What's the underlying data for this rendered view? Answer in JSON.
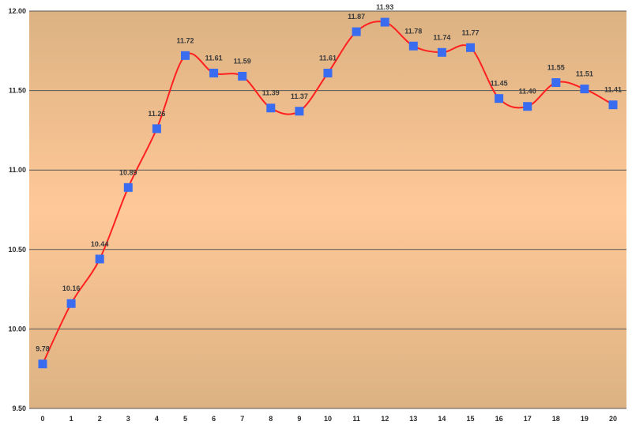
{
  "chart_data": {
    "type": "line",
    "title": "",
    "xlabel": "",
    "ylabel": "",
    "x": [
      0,
      1,
      2,
      3,
      4,
      5,
      6,
      7,
      8,
      9,
      10,
      11,
      12,
      13,
      14,
      15,
      16,
      17,
      18,
      19,
      20
    ],
    "x_tick_labels": [
      "0",
      "1",
      "2",
      "3",
      "4",
      "5",
      "6",
      "7",
      "8",
      "9",
      "10",
      "11",
      "12",
      "13",
      "14",
      "15",
      "16",
      "17",
      "18",
      "19",
      "20"
    ],
    "series": [
      {
        "values": [
          9.78,
          10.16,
          10.44,
          10.89,
          11.26,
          11.72,
          11.61,
          11.59,
          11.39,
          11.37,
          11.61,
          11.87,
          11.93,
          11.78,
          11.74,
          11.77,
          11.45,
          11.4,
          11.55,
          11.51,
          11.41
        ],
        "labels": [
          "9.78",
          "10.16",
          "10.44",
          "10.89",
          "11.26",
          "11.72",
          "11.61",
          "11.59",
          "11.39",
          "11.37",
          "11.61",
          "11.87",
          "11.93",
          "11.78",
          "11.74",
          "11.77",
          "11.45",
          "11.40",
          "11.55",
          "11.51",
          "11.41"
        ],
        "line_color": "#ff2020",
        "marker_color": "#3a6cf0",
        "marker": "square",
        "smooth": true
      }
    ],
    "ylim": [
      9.5,
      12.0
    ],
    "y_ticks": [
      9.5,
      10.0,
      10.5,
      11.0,
      11.5,
      12.0
    ],
    "y_tick_labels": [
      "9.50",
      "10.00",
      "10.50",
      "11.00",
      "11.50",
      "12.00"
    ],
    "grid": true,
    "legend": "none",
    "colors": {
      "plot_bg_edge": "#dcb282",
      "plot_bg_center": "#ffc898",
      "grid_line": "#555555"
    }
  }
}
